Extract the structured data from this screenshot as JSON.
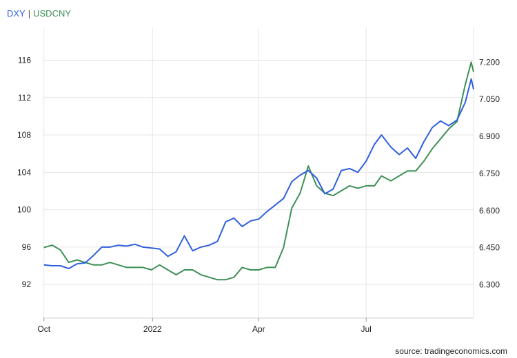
{
  "chart_data": {
    "type": "line",
    "title": "",
    "xlabel": "",
    "ylabel": "",
    "x_ticks": [
      "Oct",
      "2022",
      "Apr",
      "Jul"
    ],
    "left_axis": {
      "ticks": [
        "116",
        "112",
        "108",
        "104",
        "100",
        "96",
        "92"
      ],
      "ylim": [
        88.4,
        119.5
      ]
    },
    "right_axis": {
      "ticks": [
        "7.200",
        "7.050",
        "6.900",
        "6.750",
        "6.600",
        "6.450",
        "6.300"
      ],
      "ylim": [
        6.165,
        7.34
      ]
    },
    "grid": true,
    "legend_position": "top-left",
    "series": [
      {
        "name": "DXY",
        "axis": "left",
        "color": "#2f5fe0",
        "x": [
          "2021-10-01",
          "2021-10-08",
          "2021-10-15",
          "2021-10-22",
          "2021-10-29",
          "2021-11-05",
          "2021-11-12",
          "2021-11-19",
          "2021-11-26",
          "2021-12-03",
          "2021-12-10",
          "2021-12-17",
          "2021-12-24",
          "2021-12-31",
          "2022-01-07",
          "2022-01-14",
          "2022-01-21",
          "2022-01-28",
          "2022-02-04",
          "2022-02-11",
          "2022-02-18",
          "2022-02-25",
          "2022-03-04",
          "2022-03-11",
          "2022-03-18",
          "2022-03-25",
          "2022-04-01",
          "2022-04-08",
          "2022-04-15",
          "2022-04-22",
          "2022-04-29",
          "2022-05-06",
          "2022-05-13",
          "2022-05-20",
          "2022-05-27",
          "2022-06-03",
          "2022-06-10",
          "2022-06-17",
          "2022-06-24",
          "2022-07-01",
          "2022-07-08",
          "2022-07-14",
          "2022-07-22",
          "2022-07-29",
          "2022-08-05",
          "2022-08-12",
          "2022-08-19",
          "2022-08-26",
          "2022-09-02",
          "2022-09-09",
          "2022-09-16",
          "2022-09-23",
          "2022-09-28",
          "2022-09-30"
        ],
        "values": [
          94.1,
          94.0,
          94.0,
          93.7,
          94.2,
          94.3,
          95.1,
          96.0,
          96.0,
          96.2,
          96.1,
          96.3,
          96.0,
          95.9,
          95.8,
          95.0,
          95.5,
          97.2,
          95.6,
          96.0,
          96.2,
          96.6,
          98.7,
          99.1,
          98.2,
          98.8,
          99.0,
          99.8,
          100.5,
          101.2,
          103.0,
          103.7,
          104.2,
          103.4,
          101.7,
          102.2,
          104.2,
          104.4,
          104.0,
          105.2,
          107.0,
          108.0,
          106.7,
          105.9,
          106.6,
          105.5,
          107.3,
          108.8,
          109.5,
          109.0,
          109.6,
          111.5,
          114.0,
          112.9
        ]
      },
      {
        "name": "USDCNY",
        "axis": "right",
        "color": "#3d8f55",
        "x": [
          "2021-10-01",
          "2021-10-08",
          "2021-10-15",
          "2021-10-22",
          "2021-10-29",
          "2021-11-05",
          "2021-11-12",
          "2021-11-19",
          "2021-11-26",
          "2021-12-03",
          "2021-12-10",
          "2021-12-17",
          "2021-12-24",
          "2021-12-31",
          "2022-01-07",
          "2022-01-14",
          "2022-01-21",
          "2022-01-28",
          "2022-02-04",
          "2022-02-11",
          "2022-02-18",
          "2022-02-25",
          "2022-03-04",
          "2022-03-11",
          "2022-03-18",
          "2022-03-25",
          "2022-04-01",
          "2022-04-08",
          "2022-04-15",
          "2022-04-22",
          "2022-04-29",
          "2022-05-06",
          "2022-05-13",
          "2022-05-20",
          "2022-05-27",
          "2022-06-03",
          "2022-06-10",
          "2022-06-17",
          "2022-06-24",
          "2022-07-01",
          "2022-07-08",
          "2022-07-14",
          "2022-07-22",
          "2022-07-29",
          "2022-08-05",
          "2022-08-12",
          "2022-08-19",
          "2022-08-26",
          "2022-09-02",
          "2022-09-09",
          "2022-09-16",
          "2022-09-23",
          "2022-09-28",
          "2022-09-30"
        ],
        "values": [
          6.45,
          6.46,
          6.44,
          6.39,
          6.4,
          6.39,
          6.38,
          6.38,
          6.39,
          6.38,
          6.37,
          6.37,
          6.37,
          6.36,
          6.38,
          6.36,
          6.34,
          6.36,
          6.36,
          6.34,
          6.33,
          6.32,
          6.32,
          6.33,
          6.37,
          6.36,
          6.36,
          6.37,
          6.37,
          6.45,
          6.61,
          6.67,
          6.78,
          6.7,
          6.67,
          6.66,
          6.68,
          6.7,
          6.69,
          6.7,
          6.7,
          6.74,
          6.72,
          6.74,
          6.76,
          6.76,
          6.8,
          6.85,
          6.89,
          6.93,
          6.96,
          7.11,
          7.2,
          7.16
        ]
      }
    ]
  },
  "source_text": "source: tradingeconomics.com",
  "legend_separator": "|"
}
